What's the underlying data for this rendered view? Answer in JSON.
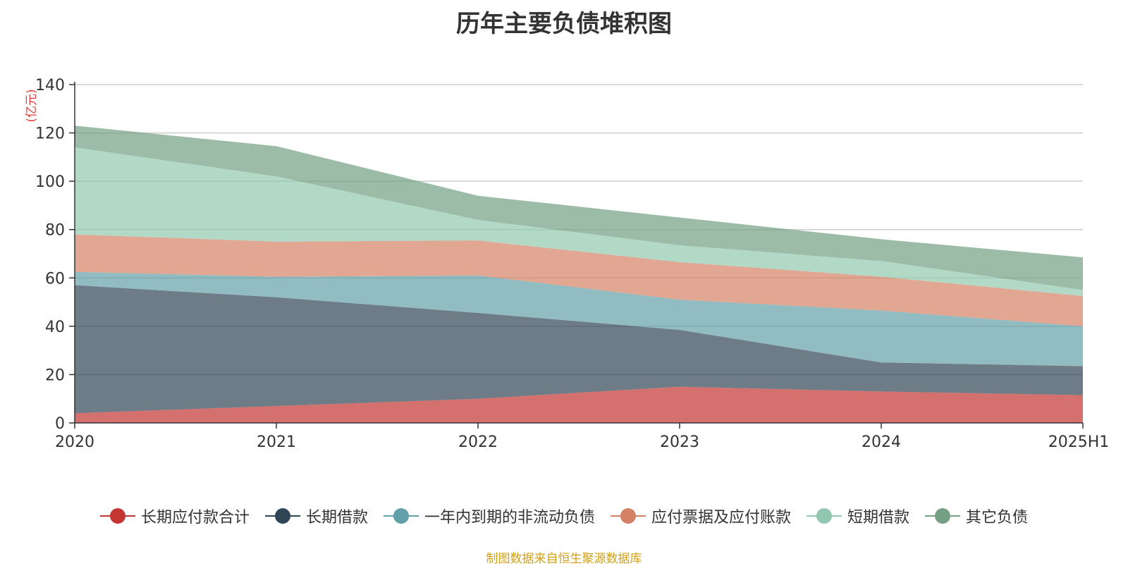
{
  "chart_data": {
    "type": "area",
    "stacked": true,
    "title": "历年主要负债堆积图",
    "unit_label": "(亿元)",
    "x": [
      "2020",
      "2021",
      "2022",
      "2023",
      "2024",
      "2025H1"
    ],
    "y_ticks": [
      "0",
      "20",
      "40",
      "60",
      "80",
      "100",
      "120",
      "140"
    ],
    "ylim": [
      0,
      140
    ],
    "grid": true,
    "legend_position": "bottom",
    "series": [
      {
        "name": "长期应付款合计",
        "color": "#c23531",
        "values": [
          4,
          7,
          10,
          15,
          13,
          11.5
        ]
      },
      {
        "name": "长期借款",
        "color": "#2f4554",
        "values": [
          53,
          45,
          35.5,
          23.5,
          12,
          12
        ]
      },
      {
        "name": "一年内到期的非流动负债",
        "color": "#61a0a8",
        "values": [
          5.5,
          8.5,
          15.5,
          12.5,
          21.5,
          16.5
        ]
      },
      {
        "name": "应付票据及应付账款",
        "color": "#d48265",
        "values": [
          15.5,
          14.5,
          14.5,
          15.5,
          14,
          12.5
        ]
      },
      {
        "name": "短期借款",
        "color": "#91c7ae",
        "values": [
          36,
          27,
          8.5,
          7,
          6.5,
          2.5
        ]
      },
      {
        "name": "其它负债",
        "color": "#749f83",
        "values": [
          9,
          12.5,
          10,
          11.5,
          9,
          13.5
        ]
      }
    ]
  },
  "source_note": "制图数据来自恒生聚源数据库"
}
